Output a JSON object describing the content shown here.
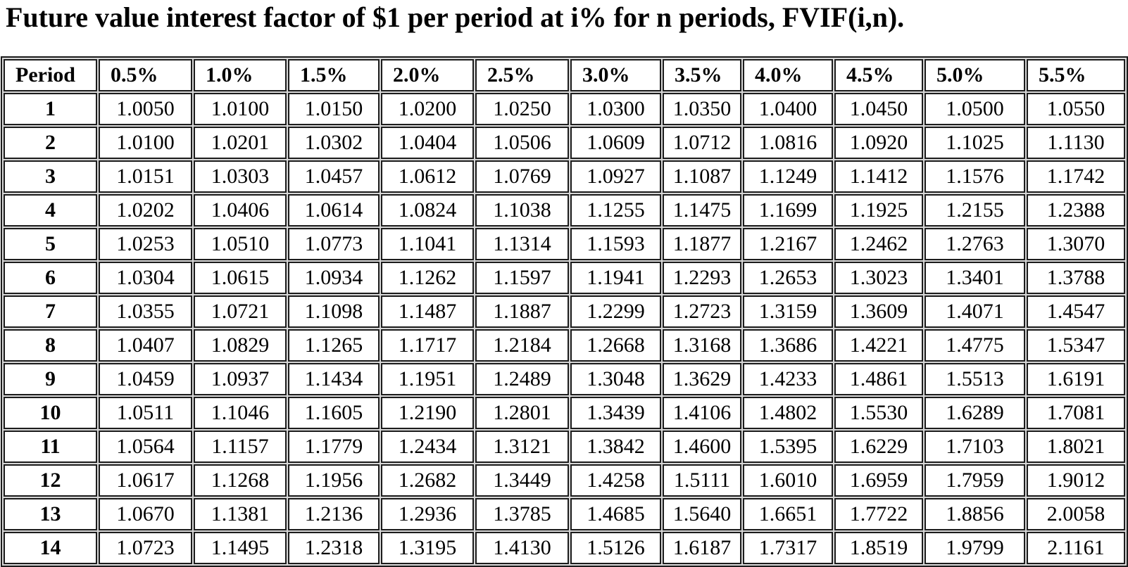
{
  "page": {
    "title": "Future value interest factor of $1 per period at i% for n periods, FVIF(i,n)."
  },
  "colors": {
    "background": "#ffffff",
    "text": "#000000",
    "cell_border": "#1c1c1c",
    "cell_gap": "#d7d7d7"
  },
  "table": {
    "column_headers": [
      "Period",
      "0.5%",
      "1.0%",
      "1.5%",
      "2.0%",
      "2.5%",
      "3.0%",
      "3.5%",
      "4.0%",
      "4.5%",
      "5.0%",
      "5.5%"
    ],
    "rows": [
      {
        "period": "1",
        "values": [
          "1.0050",
          "1.0100",
          "1.0150",
          "1.0200",
          "1.0250",
          "1.0300",
          "1.0350",
          "1.0400",
          "1.0450",
          "1.0500",
          "1.0550"
        ]
      },
      {
        "period": "2",
        "values": [
          "1.0100",
          "1.0201",
          "1.0302",
          "1.0404",
          "1.0506",
          "1.0609",
          "1.0712",
          "1.0816",
          "1.0920",
          "1.1025",
          "1.1130"
        ]
      },
      {
        "period": "3",
        "values": [
          "1.0151",
          "1.0303",
          "1.0457",
          "1.0612",
          "1.0769",
          "1.0927",
          "1.1087",
          "1.1249",
          "1.1412",
          "1.1576",
          "1.1742"
        ]
      },
      {
        "period": "4",
        "values": [
          "1.0202",
          "1.0406",
          "1.0614",
          "1.0824",
          "1.1038",
          "1.1255",
          "1.1475",
          "1.1699",
          "1.1925",
          "1.2155",
          "1.2388"
        ]
      },
      {
        "period": "5",
        "values": [
          "1.0253",
          "1.0510",
          "1.0773",
          "1.1041",
          "1.1314",
          "1.1593",
          "1.1877",
          "1.2167",
          "1.2462",
          "1.2763",
          "1.3070"
        ]
      },
      {
        "period": "6",
        "values": [
          "1.0304",
          "1.0615",
          "1.0934",
          "1.1262",
          "1.1597",
          "1.1941",
          "1.2293",
          "1.2653",
          "1.3023",
          "1.3401",
          "1.3788"
        ]
      },
      {
        "period": "7",
        "values": [
          "1.0355",
          "1.0721",
          "1.1098",
          "1.1487",
          "1.1887",
          "1.2299",
          "1.2723",
          "1.3159",
          "1.3609",
          "1.4071",
          "1.4547"
        ]
      },
      {
        "period": "8",
        "values": [
          "1.0407",
          "1.0829",
          "1.1265",
          "1.1717",
          "1.2184",
          "1.2668",
          "1.3168",
          "1.3686",
          "1.4221",
          "1.4775",
          "1.5347"
        ]
      },
      {
        "period": "9",
        "values": [
          "1.0459",
          "1.0937",
          "1.1434",
          "1.1951",
          "1.2489",
          "1.3048",
          "1.3629",
          "1.4233",
          "1.4861",
          "1.5513",
          "1.6191"
        ]
      },
      {
        "period": "10",
        "values": [
          "1.0511",
          "1.1046",
          "1.1605",
          "1.2190",
          "1.2801",
          "1.3439",
          "1.4106",
          "1.4802",
          "1.5530",
          "1.6289",
          "1.7081"
        ]
      },
      {
        "period": "11",
        "values": [
          "1.0564",
          "1.1157",
          "1.1779",
          "1.2434",
          "1.3121",
          "1.3842",
          "1.4600",
          "1.5395",
          "1.6229",
          "1.7103",
          "1.8021"
        ]
      },
      {
        "period": "12",
        "values": [
          "1.0617",
          "1.1268",
          "1.1956",
          "1.2682",
          "1.3449",
          "1.4258",
          "1.5111",
          "1.6010",
          "1.6959",
          "1.7959",
          "1.9012"
        ]
      },
      {
        "period": "13",
        "values": [
          "1.0670",
          "1.1381",
          "1.2136",
          "1.2936",
          "1.3785",
          "1.4685",
          "1.5640",
          "1.6651",
          "1.7722",
          "1.8856",
          "2.0058"
        ]
      },
      {
        "period": "14",
        "values": [
          "1.0723",
          "1.1495",
          "1.2318",
          "1.3195",
          "1.4130",
          "1.5126",
          "1.6187",
          "1.7317",
          "1.8519",
          "1.9799",
          "2.1161"
        ]
      }
    ]
  }
}
